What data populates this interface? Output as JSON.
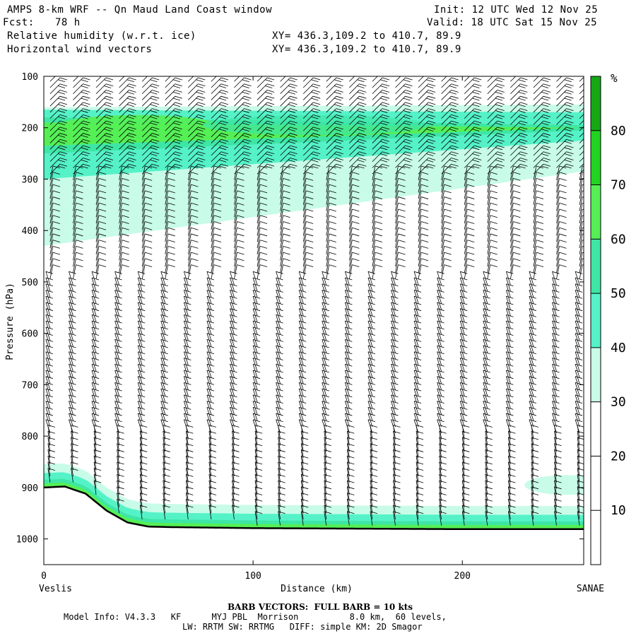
{
  "header": {
    "title": "AMPS 8-km WRF -- Qn Maud Land Coast window",
    "init": "Init: 12 UTC Wed 12 Nov 25",
    "fcst_label": "Fcst:",
    "fcst_value": "78 h",
    "valid": "Valid: 18 UTC Sat 15 Nov 25",
    "field1": "Relative humidity (w.r.t. ice)",
    "field2": "Horizontal wind vectors",
    "xy1": "XY= 436.3,109.2 to 410.7, 89.9",
    "xy2": "XY= 436.3,109.2 to 410.7, 89.9"
  },
  "footer": {
    "barb": "BARB VECTORS:  FULL BARB = 10 kts",
    "model1": "Model Info: V4.3.3   KF      MYJ PBL  Morrison          8.0 km,  60 levels,",
    "model2": "LW: RRTM SW: RRTMG   DIFF: simple KM: 2D Smagor"
  },
  "colors": {
    "rh_30_40": "#c8fce8",
    "rh_40_50": "#55f2c8",
    "rh_50_60": "#3ee6a6",
    "rh_60_70": "#55ef55",
    "rh_70_80": "#22d422",
    "rh_80_90": "#15a815"
  },
  "chart_data": {
    "type": "cross-section",
    "xlabel": "Distance (km)",
    "ylabel": "Pressure (hPa)",
    "xlim": [
      0,
      258
    ],
    "ylim": [
      1050,
      100
    ],
    "x_ticks": [
      0,
      100,
      200
    ],
    "y_ticks": [
      100,
      200,
      300,
      400,
      500,
      600,
      700,
      800,
      900,
      1000
    ],
    "left_endpoint": "Veslis",
    "right_endpoint": "SANAE",
    "colorbar": {
      "unit": "%",
      "levels": [
        10,
        20,
        30,
        40,
        50,
        60,
        70,
        80
      ],
      "colors": [
        "#ffffff",
        "#ffffff",
        "#ffffff",
        "#c8fce8",
        "#55f2c8",
        "#3ee6a6",
        "#55ef55",
        "#22d422",
        "#15a815"
      ]
    },
    "terrain_pressure": {
      "x": [
        0,
        10,
        20,
        30,
        40,
        50,
        60,
        80,
        100,
        150,
        200,
        258
      ],
      "p": [
        900,
        898,
        912,
        945,
        968,
        976,
        977,
        978,
        979,
        980,
        981,
        981
      ]
    },
    "rh_bands": [
      {
        "range": "30-40",
        "top_left": 160,
        "top_right": 155,
        "bottom_left": 430,
        "bottom_right": 285
      },
      {
        "range": "40-50",
        "top_left": 165,
        "top_right": 170,
        "bottom_left": 300,
        "bottom_right": 225
      },
      {
        "range": "50-60",
        "top_left": 180,
        "top_right": 195,
        "bottom_left": 250,
        "bottom_right": 205
      },
      {
        "range": "60-70",
        "top_left": 190,
        "top_right": 200,
        "bottom_left": 235,
        "bottom_right": 200
      }
    ],
    "wind_columns_x": [
      3,
      14,
      25,
      36,
      47,
      58,
      69,
      80,
      91,
      102,
      113,
      124,
      135,
      146,
      157,
      168,
      179,
      190,
      201,
      212,
      223,
      234,
      245,
      256
    ]
  }
}
